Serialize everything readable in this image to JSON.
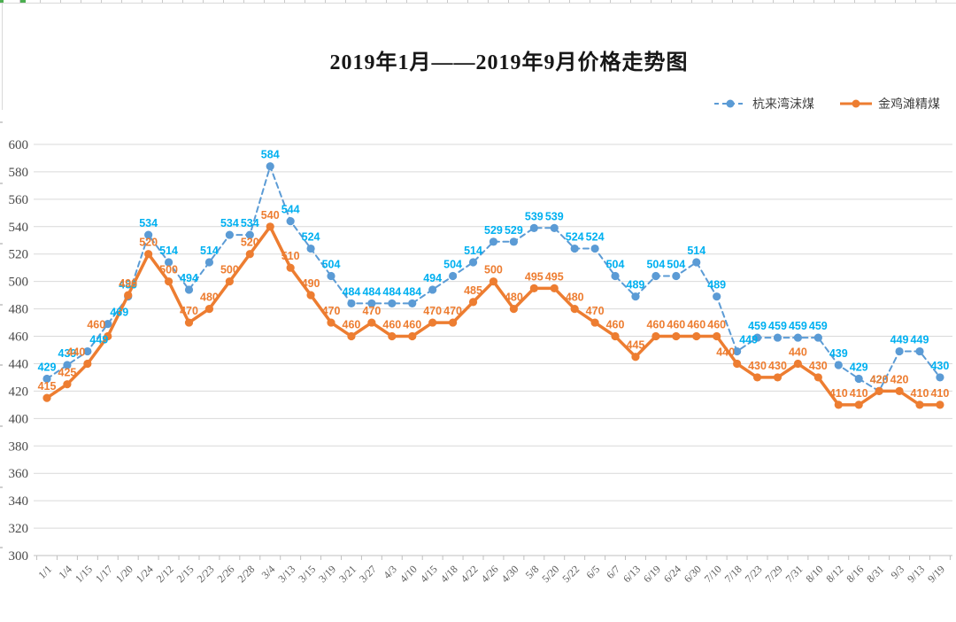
{
  "chart_data": {
    "type": "line",
    "title": "2019年1月——2019年9月价格走势图",
    "xlabel": "",
    "ylabel": "",
    "ylim": [
      300,
      600
    ],
    "y_tick_step": 20,
    "grid": true,
    "data_labels": true,
    "legend_position": "top-right",
    "categories": [
      "1/1",
      "1/4",
      "1/15",
      "1/17",
      "1/20",
      "1/24",
      "2/12",
      "2/15",
      "2/23",
      "2/26",
      "2/28",
      "3/4",
      "3/13",
      "3/15",
      "3/19",
      "3/21",
      "3/27",
      "4/3",
      "4/10",
      "4/15",
      "4/18",
      "4/22",
      "4/26",
      "4/30",
      "5/8",
      "5/20",
      "5/22",
      "6/5",
      "6/7",
      "6/13",
      "6/19",
      "6/24",
      "6/30",
      "7/10",
      "7/18",
      "7/23",
      "7/29",
      "7/31",
      "8/10",
      "8/12",
      "8/16",
      "8/31",
      "9/3",
      "9/13",
      "9/19"
    ],
    "series": [
      {
        "name": "杭来湾沫煤",
        "line_style": "dashed",
        "color": "#5B9BD5",
        "label_color": "#00B0F0",
        "values": [
          429,
          439,
          449,
          469,
          489,
          534,
          514,
          494,
          514,
          534,
          534,
          584,
          544,
          524,
          504,
          484,
          484,
          484,
          484,
          494,
          504,
          514,
          529,
          529,
          539,
          539,
          524,
          524,
          504,
          489,
          504,
          504,
          514,
          489,
          449,
          459,
          459,
          459,
          459,
          439,
          429,
          420,
          449,
          449,
          430
        ]
      },
      {
        "name": "金鸡滩精煤",
        "line_style": "solid",
        "color": "#ED7D31",
        "label_color": "#ED7D31",
        "values": [
          415,
          425,
          440,
          460,
          490,
          520,
          500,
          470,
          480,
          500,
          520,
          540,
          510,
          490,
          470,
          460,
          470,
          460,
          460,
          470,
          470,
          485,
          500,
          480,
          495,
          495,
          480,
          470,
          460,
          445,
          460,
          460,
          460,
          460,
          440,
          430,
          430,
          440,
          430,
          410,
          410,
          420,
          420,
          410,
          410
        ]
      }
    ]
  },
  "colors": {
    "gridline": "#d9d9d9",
    "axis": "#bfbfbf",
    "axis_text": "#5a5a5a",
    "title_text": "#171717",
    "sheet_artifact_green": "#4caf50"
  }
}
